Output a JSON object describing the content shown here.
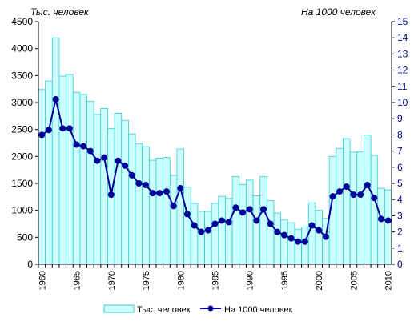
{
  "chart_data": {
    "type": "bar+line",
    "left_unit_label": "Тыс. человек",
    "right_unit_label": "На 1000 человек",
    "x": [
      1960,
      1961,
      1962,
      1963,
      1964,
      1965,
      1966,
      1967,
      1968,
      1969,
      1970,
      1971,
      1972,
      1973,
      1974,
      1975,
      1976,
      1977,
      1978,
      1979,
      1980,
      1981,
      1982,
      1983,
      1984,
      1985,
      1986,
      1987,
      1988,
      1989,
      1990,
      1991,
      1992,
      1993,
      1994,
      1995,
      1996,
      1997,
      1998,
      1999,
      2000,
      2001,
      2002,
      2003,
      2004,
      2005,
      2006,
      2007,
      2008,
      2009,
      2010
    ],
    "x_tick_labels": [
      "1960",
      "1965",
      "1970",
      "1975",
      "1980",
      "1985",
      "1990",
      "1995",
      "2000",
      "2005",
      "2010"
    ],
    "y_left": {
      "ylim": [
        0,
        4500
      ],
      "ticks": [
        "0",
        "500",
        "1000",
        "1500",
        "2000",
        "2500",
        "3000",
        "3500",
        "4000",
        "4500"
      ]
    },
    "y_right": {
      "ylim": [
        0,
        15
      ],
      "ticks": [
        "0",
        "1",
        "2",
        "3",
        "4",
        "5",
        "6",
        "7",
        "8",
        "9",
        "10",
        "11",
        "12",
        "13",
        "14",
        "15"
      ]
    },
    "series": [
      {
        "name": "Тыс. человек",
        "kind": "bar",
        "axis": "left",
        "color": "#ccffff",
        "edge": "#33cccc",
        "values": [
          3240,
          3400,
          4200,
          3490,
          3520,
          3190,
          3150,
          3020,
          2780,
          2890,
          2520,
          2800,
          2670,
          2420,
          2240,
          2180,
          1930,
          1970,
          1980,
          1650,
          2140,
          1430,
          1130,
          980,
          980,
          1130,
          1260,
          1220,
          1630,
          1480,
          1560,
          1270,
          1630,
          1180,
          950,
          820,
          770,
          650,
          690,
          1140,
          1000,
          850,
          2000,
          2150,
          2330,
          2080,
          2090,
          2400,
          2020,
          1410,
          1380
        ]
      },
      {
        "name": "На 1000 человек",
        "kind": "line",
        "axis": "right",
        "color": "#000099",
        "values": [
          8.0,
          8.3,
          10.2,
          8.4,
          8.4,
          7.4,
          7.3,
          7.0,
          6.4,
          6.6,
          4.3,
          6.4,
          6.1,
          5.5,
          5.0,
          4.9,
          4.4,
          4.4,
          4.5,
          3.6,
          4.7,
          3.1,
          2.4,
          2.0,
          2.1,
          2.5,
          2.7,
          2.6,
          3.5,
          3.2,
          3.4,
          2.7,
          3.4,
          2.5,
          2.0,
          1.8,
          1.6,
          1.4,
          1.4,
          2.4,
          2.1,
          1.7,
          4.2,
          4.5,
          4.8,
          4.3,
          4.3,
          4.9,
          4.1,
          2.8,
          2.7
        ]
      }
    ],
    "grid": false,
    "legend_position": "bottom"
  }
}
